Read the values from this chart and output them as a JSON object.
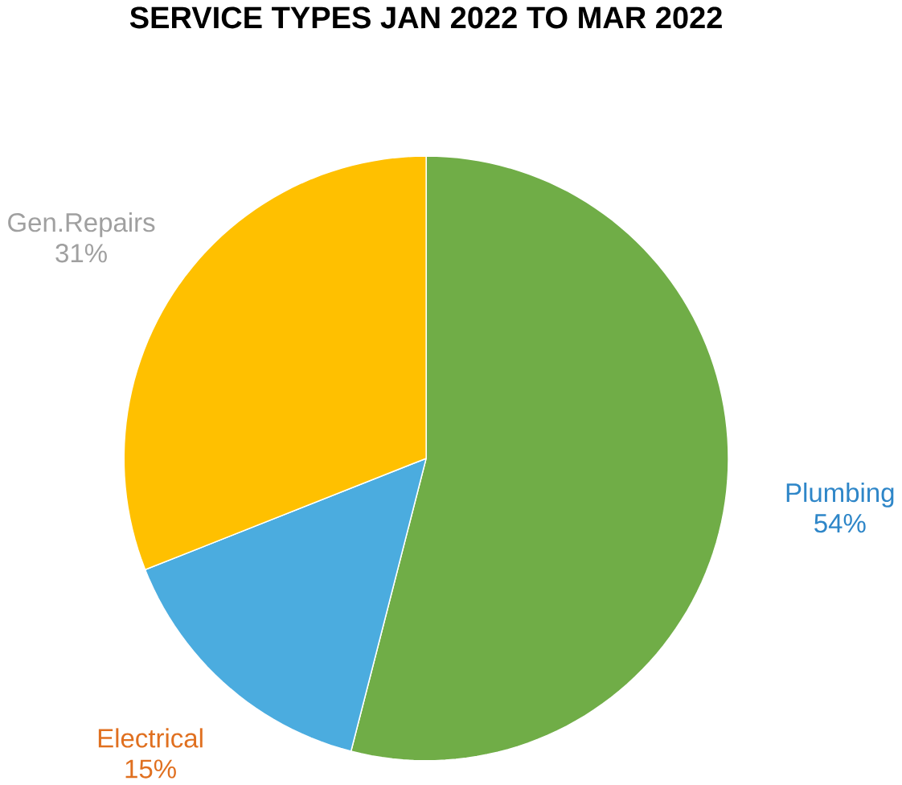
{
  "chart_data": {
    "type": "pie",
    "title": "SERVICE TYPES JAN 2022 TO MAR 2022",
    "categories": [
      "Plumbing",
      "Electrical",
      "Gen.Repairs"
    ],
    "values": [
      54,
      15,
      31
    ],
    "colors": [
      "#70ad47",
      "#4bacdf",
      "#ffc000"
    ],
    "value_labels": [
      "54%",
      "15%",
      "31%"
    ]
  }
}
